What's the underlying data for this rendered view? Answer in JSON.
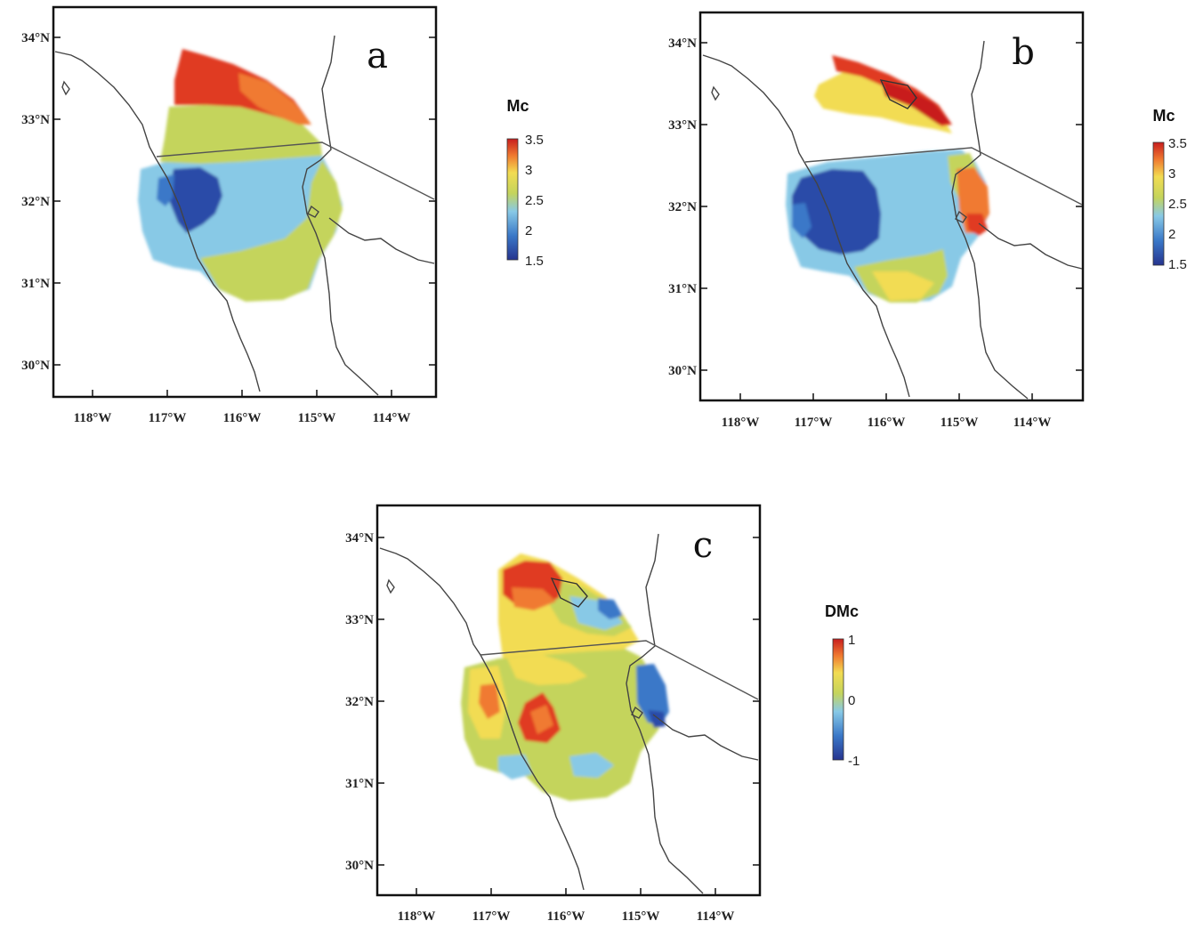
{
  "panels": [
    {
      "letter": "a",
      "lat_labels": [
        "34°N",
        "33°N",
        "32°N",
        "31°N",
        "30°N"
      ],
      "lon_labels": [
        "118°W",
        "117°W",
        "116°W",
        "115°W",
        "114°W"
      ],
      "colorbar": {
        "title": "Mc",
        "ticks": [
          "3.5",
          "3",
          "2.5",
          "2",
          "1.5"
        ],
        "range": [
          1.5,
          3.5
        ]
      }
    },
    {
      "letter": "b",
      "lat_labels": [
        "34°N",
        "33°N",
        "32°N",
        "31°N",
        "30°N"
      ],
      "lon_labels": [
        "118°W",
        "117°W",
        "116°W",
        "115°W",
        "114°W"
      ],
      "colorbar": {
        "title": "Mc",
        "ticks": [
          "3.5",
          "3",
          "2.5",
          "2",
          "1.5"
        ],
        "range": [
          1.5,
          3.5
        ]
      }
    },
    {
      "letter": "c",
      "lat_labels": [
        "34°N",
        "33°N",
        "32°N",
        "31°N",
        "30°N"
      ],
      "lon_labels": [
        "118°W",
        "117°W",
        "116°W",
        "115°W",
        "114°W"
      ],
      "colorbar": {
        "title": "DMc",
        "ticks": [
          "1",
          "0",
          "-1"
        ],
        "range": [
          -1,
          1
        ]
      }
    }
  ],
  "colors": {
    "red": "#e03a22",
    "orange": "#f07a30",
    "yellow": "#f2dc52",
    "yellowgreen": "#c4d45c",
    "lightblue": "#88c9e6",
    "blue": "#3a78c8",
    "darkblue": "#2a4ca8",
    "coast": "#444444"
  }
}
